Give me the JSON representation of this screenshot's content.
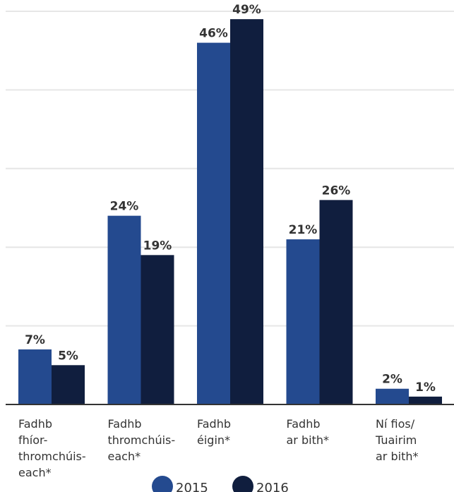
{
  "chart_data": {
    "type": "bar",
    "categories": [
      [
        "Fadhb",
        "fhíor-",
        "thromchúis-",
        "each*"
      ],
      [
        "Fadhb",
        "thromchúis-",
        "each*"
      ],
      [
        "Fadhb",
        "éigin*"
      ],
      [
        "Fadhb",
        "ar bith*"
      ],
      [
        "Ní fios/",
        "Tuairim",
        "ar bith*"
      ]
    ],
    "series": [
      {
        "name": "2015",
        "values": [
          7,
          24,
          46,
          21,
          2
        ],
        "labels": [
          "7%",
          "24%",
          "46%",
          "21%",
          "2%"
        ],
        "color": "#244a8f"
      },
      {
        "name": "2016",
        "values": [
          5,
          19,
          49,
          26,
          1
        ],
        "labels": [
          "5%",
          "19%",
          "49%",
          "26%",
          "1%"
        ],
        "color": "#101e3e"
      }
    ],
    "ylim": [
      0,
      50
    ],
    "grid": true,
    "legend_position": "bottom-center"
  }
}
